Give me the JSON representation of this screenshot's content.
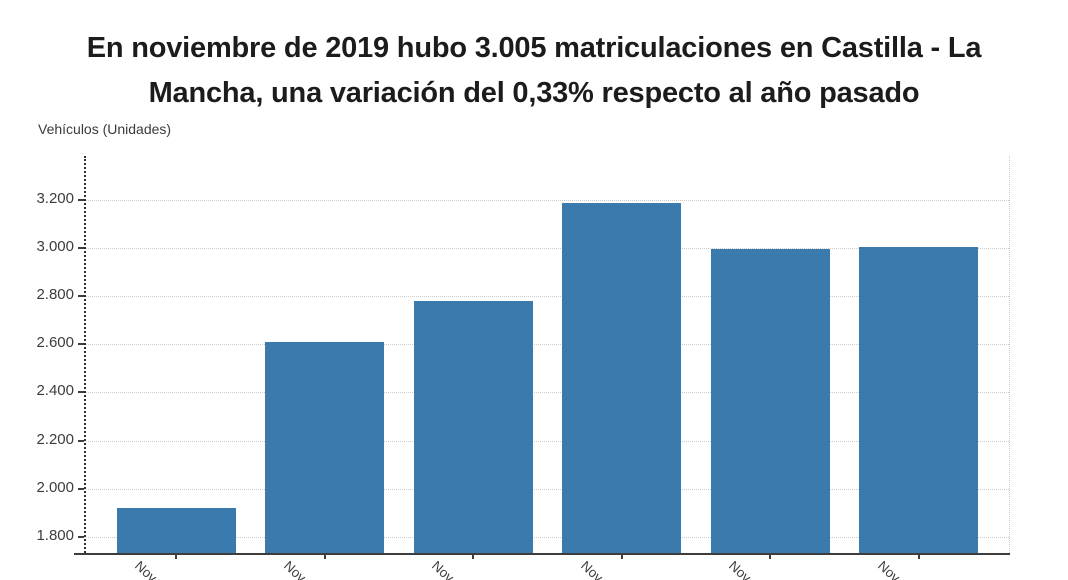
{
  "title": {
    "text": "En noviembre de 2019 hubo 3.005 matriculaciones en Castilla - La Mancha, una variación del 0,33% respecto al año pasado",
    "lines": [
      "En noviembre de 2019 hubo 3.005 matriculaciones en Castilla - La",
      "Mancha, una variación del 0,33% respecto al año pasado"
    ]
  },
  "axis_title": "Vehículos (Unidades)",
  "chart_data": {
    "type": "bar",
    "categories": [
      "Nov...",
      "Nov...",
      "Nov...",
      "Nov...",
      "Nov...",
      "Nov..."
    ],
    "values": [
      1920,
      2610,
      2780,
      3190,
      2995,
      3005
    ],
    "title": "En noviembre de 2019 hubo 3.005 matriculaciones en Castilla - La Mancha, una variación del 0,33% respecto al año pasado",
    "xlabel": "",
    "ylabel": "Vehículos (Unidades)",
    "yticks": [
      1800,
      2000,
      2200,
      2400,
      2600,
      2800,
      3000,
      3200
    ],
    "ytick_labels": [
      "1.800",
      "2.000",
      "2.200",
      "2.400",
      "2.600",
      "2.800",
      "3.000",
      "3.200"
    ],
    "ylim": [
      1717,
      3385
    ],
    "grid": true,
    "legend": false,
    "colors": {
      "bar": "#3a7aad",
      "axis_line": "#3d3d3d",
      "grid_line": "#cccccc",
      "text": "#3c3c3c",
      "title_text": "#1c1c1c"
    }
  }
}
